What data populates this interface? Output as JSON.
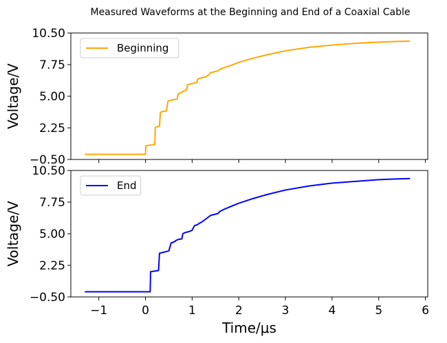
{
  "figure": {
    "title": "Measured Waveforms at the Beginning and End of a Coaxial Cable"
  },
  "chart_data": [
    {
      "type": "line",
      "panel": "top",
      "title": "",
      "xlabel": "",
      "ylabel": "Voltage/V",
      "xlim": [
        -1.6,
        6.05
      ],
      "ylim": [
        -0.5,
        10.5
      ],
      "xticks": [
        -1,
        0,
        1,
        2,
        3,
        4,
        5,
        6
      ],
      "xticklabels_visible": false,
      "yticks": [
        -0.5,
        2.25,
        5.0,
        7.75,
        10.5
      ],
      "yticklabels": [
        "−0.50",
        "2.25",
        "5.00",
        "7.75",
        "10.50"
      ],
      "legend_position": "top-left",
      "grid": false,
      "series": [
        {
          "name": "Beginning",
          "color": "#ffa500",
          "x": [
            -1.3,
            -0.7,
            -0.2,
            0.0,
            0.01,
            0.1,
            0.2,
            0.21,
            0.25,
            0.3,
            0.32,
            0.35,
            0.4,
            0.45,
            0.48,
            0.5,
            0.6,
            0.68,
            0.7,
            0.75,
            0.8,
            0.88,
            0.9,
            1.0,
            1.1,
            1.12,
            1.2,
            1.3,
            1.35,
            1.4,
            1.55,
            1.6,
            1.7,
            1.85,
            2.0,
            2.3,
            2.6,
            3.0,
            3.5,
            4.0,
            4.5,
            5.0,
            5.3,
            5.67
          ],
          "y": [
            -0.05,
            -0.05,
            -0.05,
            -0.05,
            0.7,
            0.75,
            0.8,
            2.3,
            2.35,
            2.4,
            3.6,
            3.65,
            3.7,
            3.72,
            4.55,
            4.6,
            4.7,
            4.75,
            5.2,
            5.3,
            5.4,
            5.55,
            6.0,
            6.1,
            6.2,
            6.5,
            6.6,
            6.7,
            6.85,
            7.05,
            7.2,
            7.35,
            7.5,
            7.7,
            7.95,
            8.3,
            8.6,
            8.95,
            9.25,
            9.45,
            9.6,
            9.7,
            9.75,
            9.8
          ]
        }
      ]
    },
    {
      "type": "line",
      "panel": "bottom",
      "title": "",
      "xlabel": "Time/μs",
      "ylabel": "Voltage/V",
      "xlim": [
        -1.6,
        6.05
      ],
      "ylim": [
        -0.5,
        10.5
      ],
      "xticks": [
        -1,
        0,
        1,
        2,
        3,
        4,
        5,
        6
      ],
      "xticklabels": [
        "−1",
        "0",
        "1",
        "2",
        "3",
        "4",
        "5",
        "6"
      ],
      "yticks": [
        -0.5,
        2.25,
        5.0,
        7.75,
        10.5
      ],
      "yticklabels": [
        "−0.50",
        "2.25",
        "5.00",
        "7.75",
        "10.50"
      ],
      "legend_position": "top-left",
      "grid": false,
      "series": [
        {
          "name": "End",
          "color": "#0000ff",
          "x": [
            -1.3,
            -0.7,
            -0.2,
            0.05,
            0.1,
            0.11,
            0.2,
            0.28,
            0.3,
            0.35,
            0.45,
            0.5,
            0.55,
            0.62,
            0.65,
            0.7,
            0.78,
            0.8,
            0.85,
            0.95,
            1.0,
            1.05,
            1.12,
            1.15,
            1.2,
            1.3,
            1.35,
            1.4,
            1.55,
            1.6,
            1.7,
            1.85,
            2.0,
            2.3,
            2.6,
            3.0,
            3.5,
            4.0,
            4.5,
            5.0,
            5.3,
            5.67
          ],
          "y": [
            -0.05,
            -0.05,
            -0.05,
            -0.05,
            -0.05,
            1.7,
            1.75,
            1.8,
            3.3,
            3.35,
            3.45,
            3.5,
            4.2,
            4.3,
            4.4,
            4.5,
            4.55,
            5.0,
            5.1,
            5.2,
            5.3,
            5.7,
            5.8,
            5.9,
            6.0,
            6.3,
            6.45,
            6.6,
            6.75,
            6.95,
            7.15,
            7.4,
            7.65,
            8.05,
            8.4,
            8.8,
            9.15,
            9.4,
            9.55,
            9.7,
            9.75,
            9.8
          ]
        }
      ]
    }
  ]
}
